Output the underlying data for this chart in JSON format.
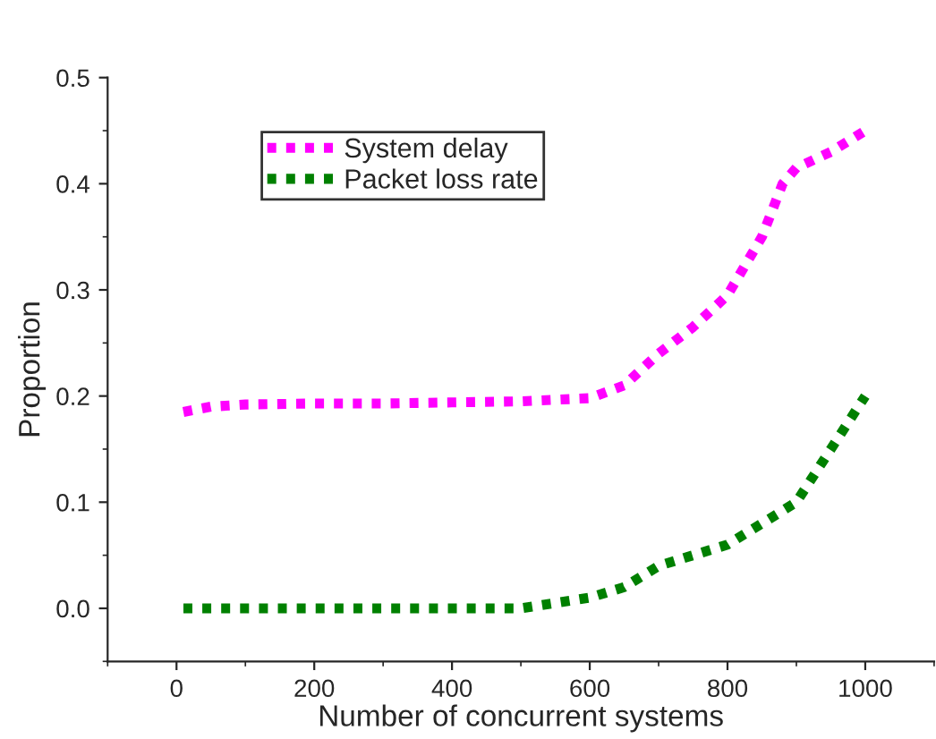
{
  "chart_data": {
    "type": "line",
    "xlabel": "Number of concurrent systems",
    "ylabel": "Proportion",
    "xlim": [
      -100,
      1100
    ],
    "xticks": [
      0,
      200,
      400,
      600,
      800,
      1000
    ],
    "ylim": [
      -0.05,
      0.5
    ],
    "yticks": [
      {
        "value": 0,
        "label": "0.0"
      },
      0.1,
      0.2,
      0.3,
      0.4,
      0.5
    ],
    "legend": "top left",
    "line_style": "dashed",
    "grid": false,
    "series": [
      {
        "name": "System delay",
        "color": "#ff00ff",
        "x": [
          10,
          50,
          100,
          200,
          300,
          400,
          500,
          600,
          650,
          700,
          750,
          800,
          850,
          880,
          900,
          950,
          1000
        ],
        "values": [
          0.185,
          0.19,
          0.192,
          0.193,
          0.193,
          0.194,
          0.195,
          0.198,
          0.21,
          0.24,
          0.265,
          0.295,
          0.35,
          0.4,
          0.415,
          0.43,
          0.45
        ]
      },
      {
        "name": "Packet loss rate",
        "color": "#008000",
        "x": [
          10,
          500,
          600,
          650,
          700,
          800,
          850,
          900,
          950,
          1000
        ],
        "values": [
          0,
          0,
          0.01,
          0.02,
          0.04,
          0.06,
          0.08,
          0.1,
          0.15,
          0.2
        ]
      }
    ]
  }
}
